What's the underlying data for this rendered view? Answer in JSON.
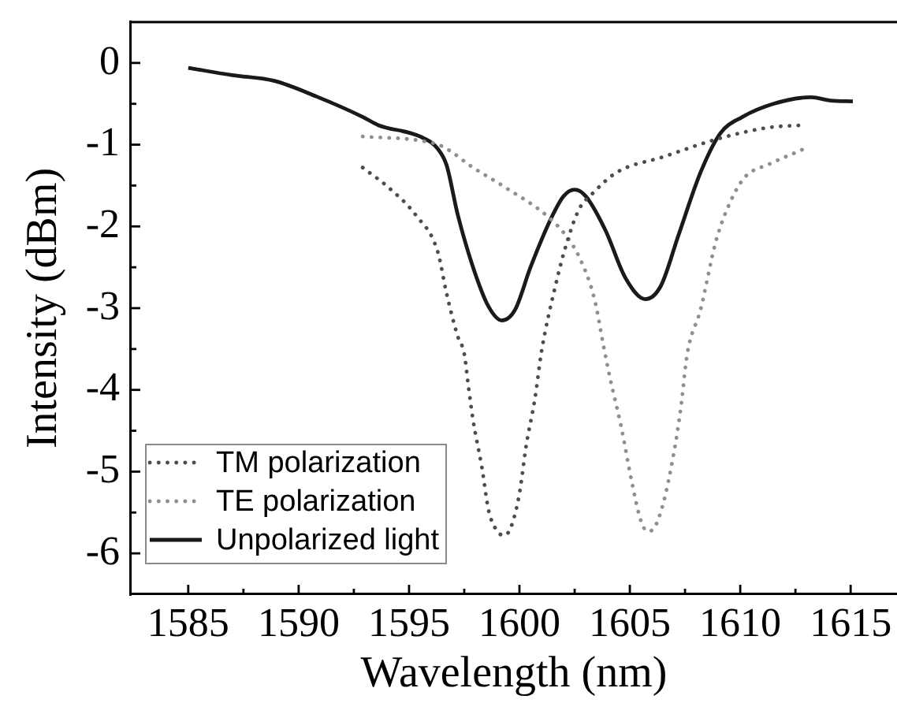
{
  "chart_data": {
    "type": "line",
    "xlabel": "Wavelength (nm)",
    "ylabel": "Intensity (dBm)",
    "xlim": [
      1582.4,
      1617.1
    ],
    "ylim": [
      -6.5,
      0.5
    ],
    "xticks": [
      1585,
      {
        "value": 1587.5,
        "label": null
      },
      1590,
      {
        "value": 1592.5,
        "label": null
      },
      1595,
      {
        "value": 1597.5,
        "label": null
      },
      1600,
      {
        "value": 1602.5,
        "label": null
      },
      1605,
      {
        "value": 1607.5,
        "label": null
      },
      1610,
      {
        "value": 1612.5,
        "label": null
      },
      1615
    ],
    "yticks": [
      -6,
      {
        "value": -5.5,
        "label": null
      },
      -5,
      {
        "value": -4.5,
        "label": null
      },
      -4,
      {
        "value": -3.5,
        "label": null
      },
      -3,
      {
        "value": -2.5,
        "label": null
      },
      -2,
      {
        "value": -1.5,
        "label": null
      },
      -1,
      {
        "value": -0.5,
        "label": null
      },
      0
    ],
    "legend": "bottom left",
    "series": [
      {
        "name": "TM polarization",
        "color": "#4d4d4d",
        "line_style": "dotted",
        "x": [
          1592.9,
          1594.1,
          1595.3,
          1596.3,
          1596.7,
          1597.2,
          1597.5,
          1597.7,
          1597.9,
          1598.3,
          1598.6,
          1599.0,
          1599.3,
          1599.6,
          1600.0,
          1600.3,
          1600.7,
          1601.0,
          1601.6,
          1602.1,
          1602.7,
          1603.3,
          1604.4,
          1606.5,
          1609.1,
          1611.3,
          1612.9
        ],
        "values": [
          -1.28,
          -1.53,
          -1.86,
          -2.31,
          -2.82,
          -3.34,
          -3.56,
          -3.98,
          -4.37,
          -4.95,
          -5.47,
          -5.73,
          -5.78,
          -5.69,
          -5.27,
          -4.69,
          -4.11,
          -3.53,
          -2.76,
          -2.24,
          -1.79,
          -1.6,
          -1.34,
          -1.15,
          -0.92,
          -0.79,
          -0.76
        ]
      },
      {
        "name": "TE polarization",
        "color": "#8f8f8f",
        "line_style": "dotted",
        "x": [
          1592.9,
          1595.5,
          1596.5,
          1597.9,
          1599.4,
          1601.2,
          1602.1,
          1602.7,
          1603.4,
          1603.8,
          1604.1,
          1604.6,
          1605.1,
          1605.5,
          1605.8,
          1606.1,
          1606.5,
          1607.0,
          1607.3,
          1607.6,
          1608.2,
          1608.9,
          1609.5,
          1610.2,
          1611.3,
          1612.9
        ],
        "values": [
          -0.9,
          -0.95,
          -1.02,
          -1.28,
          -1.53,
          -1.86,
          -2.11,
          -2.37,
          -2.89,
          -3.45,
          -3.85,
          -4.44,
          -5.14,
          -5.6,
          -5.73,
          -5.69,
          -5.4,
          -4.76,
          -4.24,
          -3.56,
          -3.02,
          -2.18,
          -1.73,
          -1.4,
          -1.24,
          -1.05
        ]
      },
      {
        "name": "Unpolarized light",
        "color": "#1a1a1a",
        "line_style": "solid",
        "x": [
          1585,
          1587.0,
          1588.9,
          1590.8,
          1592.9,
          1593.6,
          1595.5,
          1596.3,
          1596.7,
          1597.2,
          1597.9,
          1598.6,
          1599.2,
          1599.8,
          1600.5,
          1601.4,
          1602.0,
          1602.5,
          1603.0,
          1603.9,
          1604.8,
          1605.7,
          1606.4,
          1607.2,
          1608.2,
          1609.1,
          1610.1,
          1611.5,
          1613.2,
          1614.1,
          1615.1
        ],
        "values": [
          -0.06,
          -0.15,
          -0.22,
          -0.41,
          -0.66,
          -0.76,
          -0.9,
          -1.05,
          -1.25,
          -1.85,
          -2.5,
          -2.98,
          -3.15,
          -3.02,
          -2.5,
          -1.92,
          -1.63,
          -1.55,
          -1.63,
          -2.05,
          -2.63,
          -2.89,
          -2.73,
          -2.11,
          -1.34,
          -0.86,
          -0.66,
          -0.5,
          -0.42,
          -0.46,
          -0.47
        ]
      }
    ]
  }
}
